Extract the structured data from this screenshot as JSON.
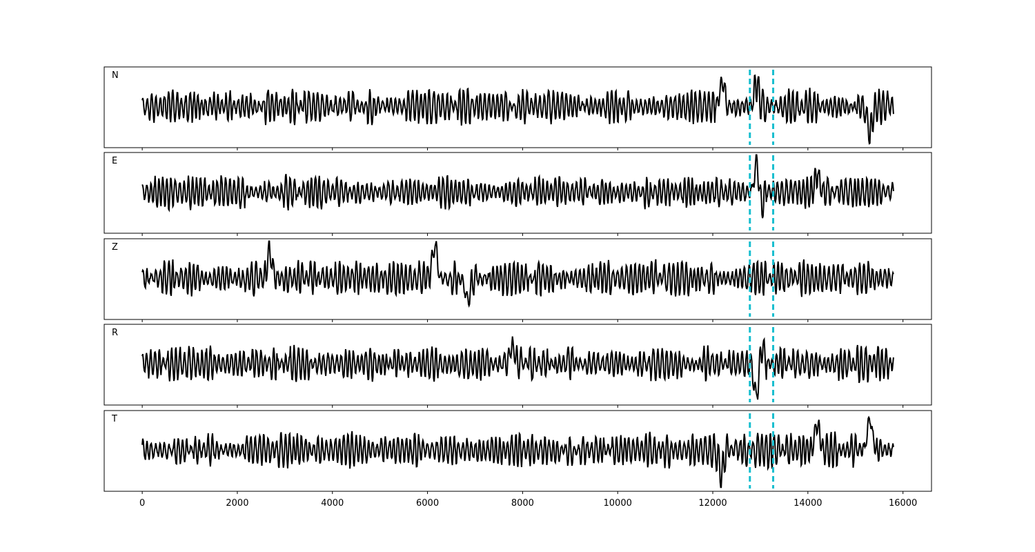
{
  "chart_data": {
    "type": "line",
    "title": "",
    "xlabel": "",
    "ylabel": "",
    "xlim": [
      -800,
      16600
    ],
    "x_ticks": [
      0,
      2000,
      4000,
      6000,
      8000,
      10000,
      12000,
      14000,
      16000
    ],
    "x_tick_labels": [
      "0",
      "2000",
      "4000",
      "6000",
      "8000",
      "10000",
      "12000",
      "14000",
      "16000"
    ],
    "y_ticks_shown": false,
    "grid": false,
    "sample_range": [
      0,
      15800
    ],
    "line_color": "#000000",
    "marker_color": "#17becf",
    "markers": [
      {
        "x": 12780,
        "style": "dashed"
      },
      {
        "x": 13270,
        "style": "dashed"
      }
    ],
    "panels": [
      {
        "label": "N",
        "events": [
          {
            "x": 12200,
            "amplitude": 0.9
          },
          {
            "x": 12920,
            "amplitude": 0.7
          },
          {
            "x": 15300,
            "amplitude": -0.9
          }
        ]
      },
      {
        "label": "E",
        "events": [
          {
            "x": 12930,
            "amplitude": 1.2
          },
          {
            "x": 13000,
            "amplitude": -0.7
          },
          {
            "x": 14200,
            "amplitude": 0.6
          }
        ]
      },
      {
        "label": "Z",
        "events": [
          {
            "x": 6150,
            "amplitude": 1.1
          },
          {
            "x": 6850,
            "amplitude": -0.8
          },
          {
            "x": 2680,
            "amplitude": 0.9
          }
        ]
      },
      {
        "label": "R",
        "events": [
          {
            "x": 12920,
            "amplitude": -1.2
          },
          {
            "x": 13020,
            "amplitude": 0.7
          },
          {
            "x": 7780,
            "amplitude": 0.6
          }
        ]
      },
      {
        "label": "T",
        "events": [
          {
            "x": 15300,
            "amplitude": 1.1
          },
          {
            "x": 12180,
            "amplitude": -0.8
          },
          {
            "x": 14200,
            "amplitude": 0.9
          }
        ]
      }
    ]
  }
}
